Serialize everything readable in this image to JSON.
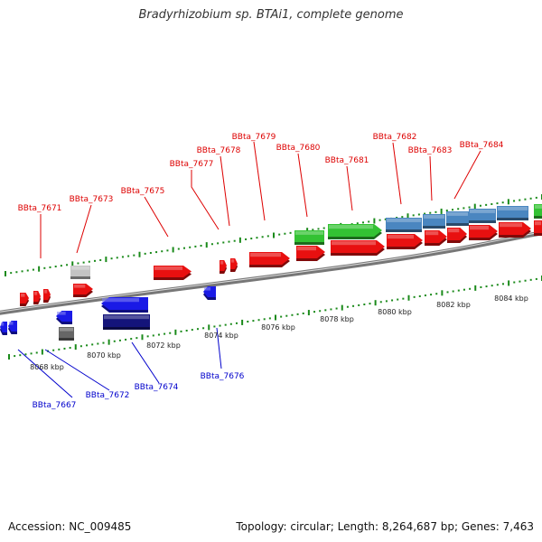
{
  "title": "Bradyrhizobium sp. BTAi1, complete genome",
  "footer": {
    "accession": "Accession: NC_009485",
    "summary": "Topology: circular; Length: 8,264,687 bp; Genes: 7,463"
  },
  "colors": {
    "red": "#e81010",
    "blue": "#1a1ae6",
    "navy": "#14147a",
    "green": "#33c233",
    "steel": "#4a86c0",
    "gray": "#c4c4c4",
    "darkgray": "#666666",
    "label_red": "#dd0000",
    "label_blue": "#0000cc",
    "tick_green": "#1a8a1a"
  },
  "axis_labels": [
    "8068 kbp",
    "8070 kbp",
    "8072 kbp",
    "8074 kbp",
    "8076 kbp",
    "8078 kbp",
    "8080 kbp",
    "8082 kbp",
    "8084 kbp"
  ],
  "gene_labels_top": [
    "BBta_7671",
    "BBta_7673",
    "BBta_7675",
    "BBta_7677",
    "BBta_7678",
    "BBta_7679",
    "BBta_7680",
    "BBta_7681",
    "BBta_7682",
    "BBta_7683",
    "BBta_7684"
  ],
  "gene_labels_bottom": [
    "BBta_7667",
    "BBta_7672",
    "BBta_7674",
    "BBta_7676"
  ]
}
